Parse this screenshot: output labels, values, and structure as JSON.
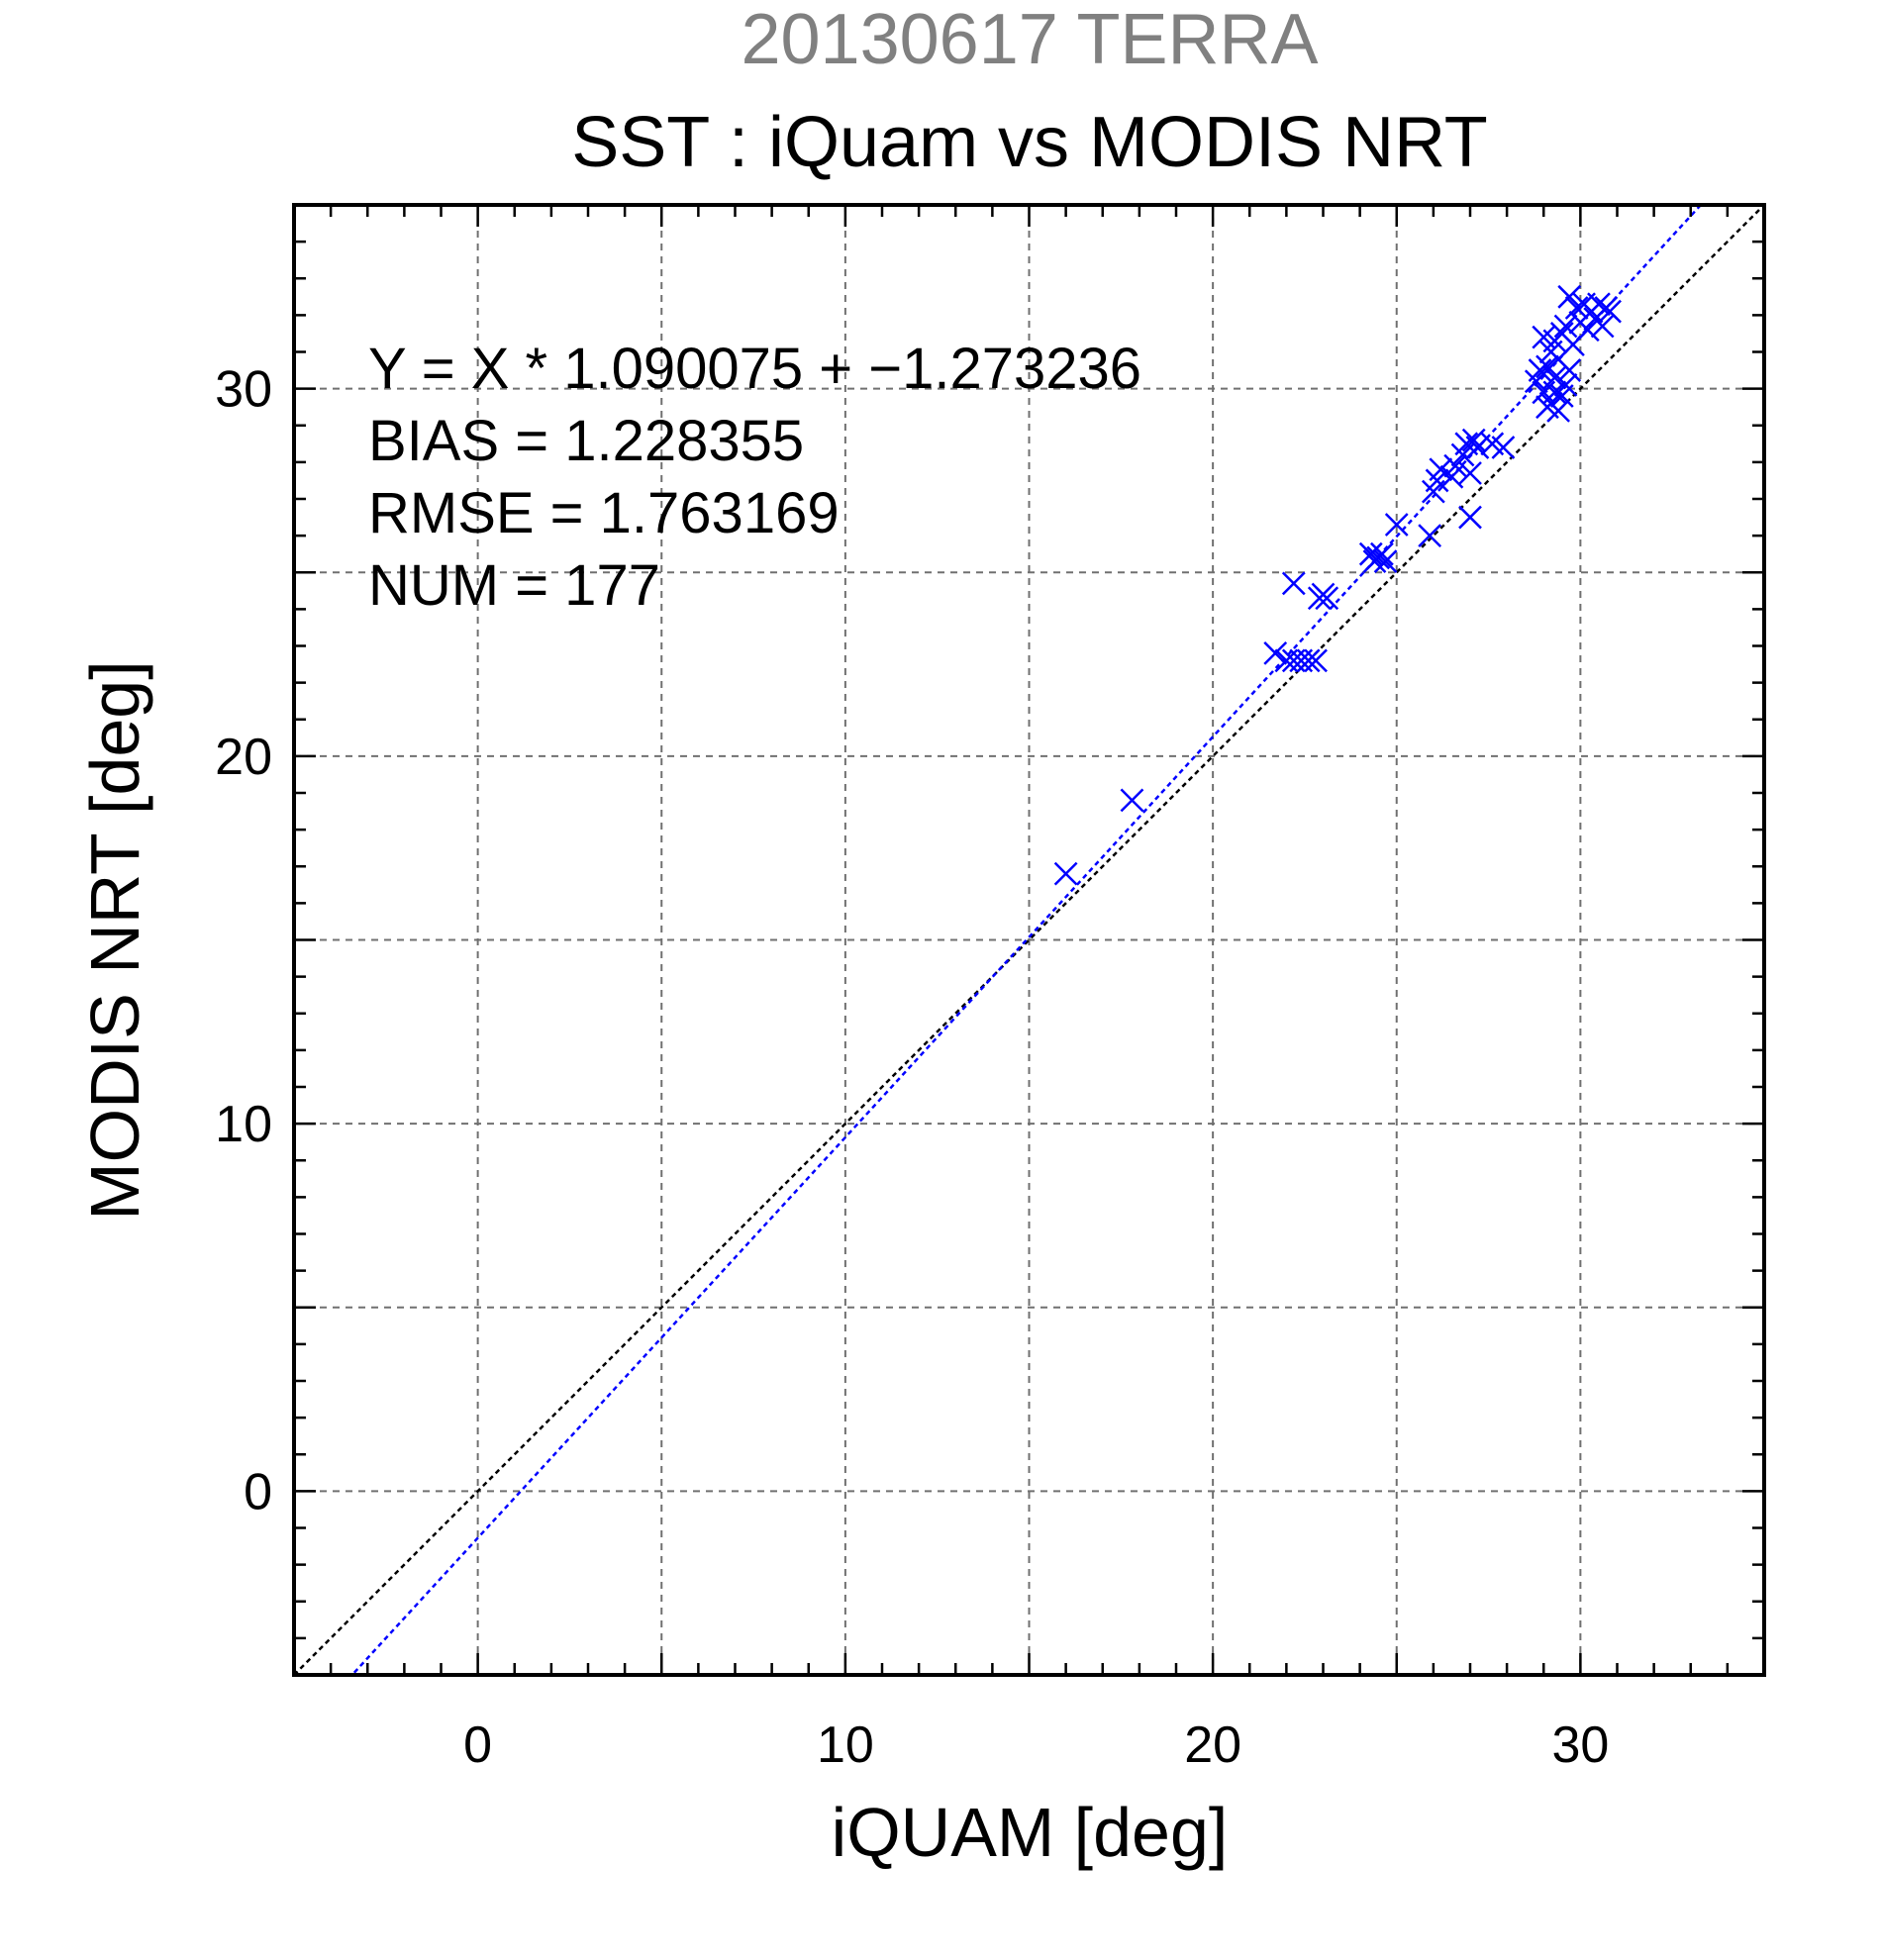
{
  "chart_data": {
    "type": "scatter",
    "title": "20130617 TERRA",
    "subtitle": "SST : iQuam vs MODIS NRT",
    "xlabel": "iQUAM [deg]",
    "ylabel": "MODIS NRT [deg]",
    "xlim": [
      -5,
      35
    ],
    "ylim": [
      -5,
      35
    ],
    "x_major_ticks": [
      0,
      10,
      20,
      30
    ],
    "y_major_ticks": [
      0,
      10,
      20,
      30
    ],
    "grid_lines": [
      -5,
      0,
      5,
      10,
      15,
      20,
      25,
      30,
      35
    ],
    "x_tick_labels": [
      "0",
      "10",
      "20",
      "30"
    ],
    "y_tick_labels": [
      "0",
      "10",
      "20",
      "30"
    ],
    "grid": true,
    "annotations": [
      "Y = X * 1.090075 + −1.273236",
      "BIAS = 1.228355",
      "RMSE = 1.763169",
      "NUM = 177"
    ],
    "fit_line": {
      "slope": 1.090075,
      "intercept": -1.273236,
      "color": "#0000ff"
    },
    "identity_line": {
      "slope": 1,
      "intercept": 0,
      "color": "#000000"
    },
    "marker": "x",
    "marker_color": "#0000ff",
    "points": [
      [
        16.0,
        16.8
      ],
      [
        17.8,
        18.8
      ],
      [
        21.7,
        22.8
      ],
      [
        22.0,
        22.6
      ],
      [
        22.2,
        22.6
      ],
      [
        22.4,
        22.6
      ],
      [
        22.6,
        22.6
      ],
      [
        22.8,
        22.6
      ],
      [
        22.2,
        24.7
      ],
      [
        22.9,
        24.3
      ],
      [
        23.0,
        24.4
      ],
      [
        23.1,
        24.3
      ],
      [
        24.3,
        25.5
      ],
      [
        24.4,
        25.3
      ],
      [
        24.5,
        25.4
      ],
      [
        24.6,
        25.5
      ],
      [
        24.7,
        25.3
      ],
      [
        25.0,
        26.3
      ],
      [
        25.9,
        26.0
      ],
      [
        26.0,
        27.2
      ],
      [
        26.1,
        27.5
      ],
      [
        26.2,
        27.8
      ],
      [
        26.5,
        27.6
      ],
      [
        26.6,
        27.9
      ],
      [
        26.8,
        28.2
      ],
      [
        26.9,
        28.5
      ],
      [
        27.0,
        27.7
      ],
      [
        27.1,
        28.6
      ],
      [
        27.2,
        28.4
      ],
      [
        27.0,
        26.5
      ],
      [
        27.6,
        28.5
      ],
      [
        27.9,
        28.4
      ],
      [
        28.8,
        30.2
      ],
      [
        28.9,
        30.5
      ],
      [
        29.0,
        29.9
      ],
      [
        29.1,
        30.6
      ],
      [
        29.2,
        31.0
      ],
      [
        29.2,
        29.6
      ],
      [
        29.3,
        31.3
      ],
      [
        29.3,
        30.3
      ],
      [
        29.4,
        29.4
      ],
      [
        29.4,
        30.8
      ],
      [
        29.5,
        31.5
      ],
      [
        29.5,
        29.8
      ],
      [
        29.6,
        30.1
      ],
      [
        29.6,
        31.7
      ],
      [
        29.7,
        32.5
      ],
      [
        29.7,
        30.5
      ],
      [
        29.8,
        31.2
      ],
      [
        29.9,
        32.2
      ],
      [
        30.0,
        31.8
      ],
      [
        30.1,
        32.3
      ],
      [
        30.2,
        31.6
      ],
      [
        30.3,
        32.1
      ],
      [
        30.4,
        31.9
      ],
      [
        30.5,
        32.3
      ],
      [
        30.6,
        31.7
      ],
      [
        30.7,
        32.2
      ],
      [
        30.8,
        32.1
      ],
      [
        29.0,
        31.4
      ],
      [
        29.1,
        29.5
      ],
      [
        29.3,
        29.9
      ]
    ]
  }
}
